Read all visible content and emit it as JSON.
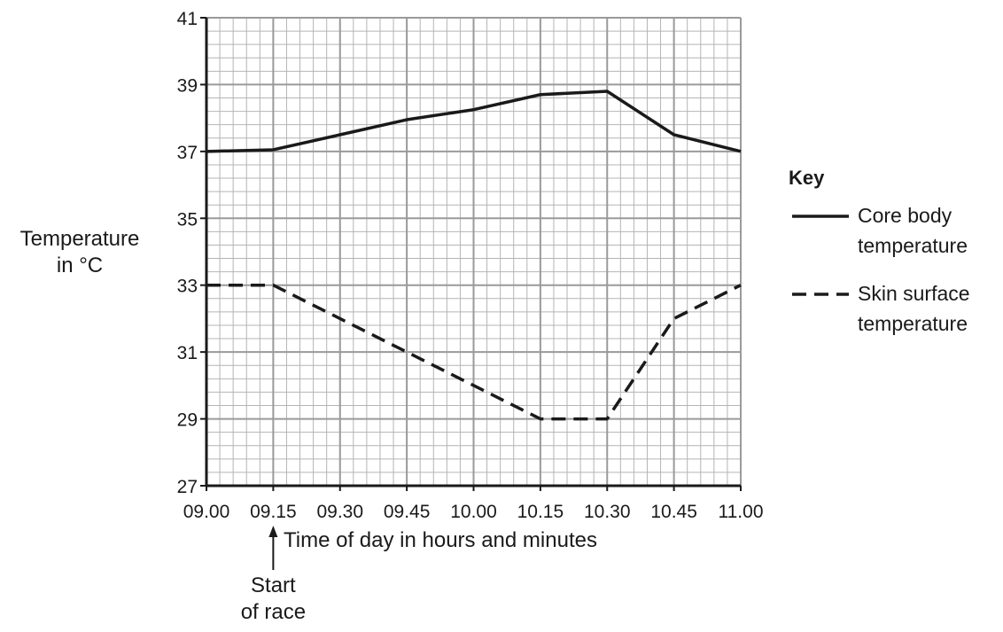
{
  "chart_data": {
    "type": "line",
    "x": [
      "09.00",
      "09.15",
      "09.30",
      "09.45",
      "10.00",
      "10.15",
      "10.30",
      "10.45",
      "11.00"
    ],
    "series": [
      {
        "name": "Core body temperature",
        "style": "solid",
        "values": [
          37.0,
          37.05,
          37.5,
          37.95,
          38.25,
          38.7,
          38.8,
          37.5,
          37.0
        ]
      },
      {
        "name": "Skin surface temperature",
        "style": "dashed",
        "values": [
          33.0,
          33.0,
          32.0,
          31.0,
          30.0,
          29.0,
          29.0,
          32.0,
          33.0
        ]
      }
    ],
    "xlabel": "Time of day in hours and minutes",
    "ylabel_lines": [
      "Temperature",
      "in °C"
    ],
    "yticks": [
      27,
      29,
      31,
      33,
      35,
      37,
      39,
      41
    ],
    "ylim": [
      27,
      41
    ],
    "grid": true,
    "legend": {
      "title": "Key",
      "placement": "right"
    },
    "annotation": {
      "lines": [
        "Start",
        "of race"
      ],
      "at": "09.15"
    }
  },
  "colors": {
    "line": "#1a1a1a",
    "major_grid": "#9a9a9a",
    "minor_grid": "#b4b4b4"
  }
}
